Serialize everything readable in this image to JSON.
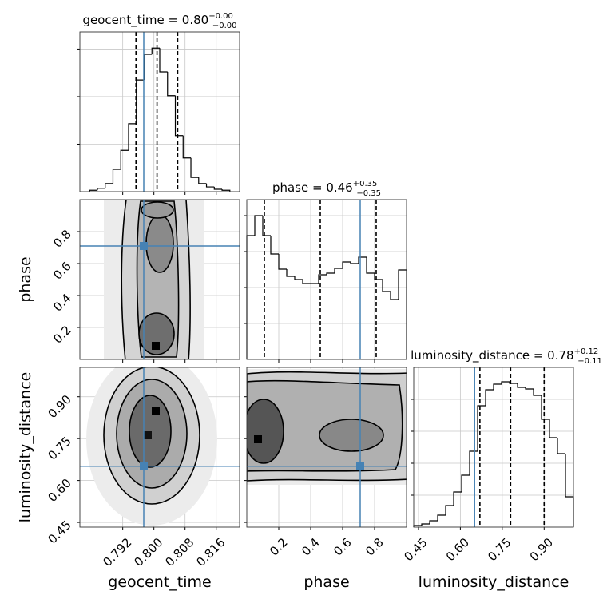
{
  "chart_data": {
    "type": "corner",
    "grid": true,
    "truth_color": "#4682b4",
    "hist_color": "#000000",
    "params": [
      {
        "name": "geocent_time",
        "title": "geocent_time = 0.80",
        "plus": "+0.00",
        "minus": "−0.00",
        "lim": [
          0.781,
          0.822
        ],
        "ticks": [
          0.792,
          {
            "value": 0.8,
            "label": "0.800"
          },
          0.808,
          0.816
        ],
        "truth": 0.7974,
        "quantiles": [
          0.7954,
          0.8008,
          0.8061
        ],
        "hist": {
          "bins": [
            0.7835,
            0.7855,
            0.7875,
            0.7895,
            0.7915,
            0.7935,
            0.7955,
            0.7975,
            0.7995,
            0.8015,
            0.8035,
            0.8055,
            0.8075,
            0.8095,
            0.8115,
            0.8135,
            0.8155,
            0.8175,
            0.8195
          ],
          "counts": [
            3,
            7,
            17,
            47,
            87,
            143,
            235,
            289,
            302,
            252,
            202,
            118,
            71,
            30,
            17,
            10,
            5,
            3
          ],
          "ylim": [
            0,
            336
          ],
          "yticks": [
            100,
            200,
            300
          ]
        }
      },
      {
        "name": "phase",
        "title": "phase = 0.46",
        "plus": "+0.35",
        "minus": "−0.35",
        "lim": [
          0,
          1
        ],
        "ticks": [
          0.2,
          0.4,
          0.6,
          0.8
        ],
        "truth": 0.71,
        "quantiles": [
          0.11,
          0.46,
          0.81
        ],
        "hist": {
          "bins": [
            0,
            0.05,
            0.1,
            0.15,
            0.2,
            0.25,
            0.3,
            0.35,
            0.4,
            0.45,
            0.5,
            0.55,
            0.6,
            0.65,
            0.7,
            0.75,
            0.8,
            0.85,
            0.9,
            0.95,
            1.0
          ],
          "counts": [
            155,
            180,
            155,
            132,
            113,
            104,
            100,
            95,
            95,
            106,
            108,
            114,
            122,
            120,
            128,
            108,
            100,
            85,
            75,
            112
          ],
          "ylim": [
            0,
            200
          ],
          "yticks": [
            45,
            90,
            135,
            180
          ]
        }
      },
      {
        "name": "luminosity_distance",
        "title": "luminosity_distance = 0.78",
        "plus": "+0.12",
        "minus": "−0.11",
        "lim": [
          0.433,
          1.005
        ],
        "ticks": [
          0.45,
          {
            "value": 0.6,
            "label": "0.60"
          },
          0.75,
          {
            "value": 0.9,
            "label": "0.90"
          }
        ],
        "truth": 0.651,
        "quantiles": [
          0.67,
          0.78,
          0.9
        ],
        "hist": {
          "bins": [
            0.433,
            0.4616,
            0.4902,
            0.5188,
            0.5474,
            0.576,
            0.6046,
            0.6332,
            0.6618,
            0.6904,
            0.719,
            0.7476,
            0.7762,
            0.8048,
            0.8334,
            0.862,
            0.8906,
            0.9192,
            0.9478,
            0.9764,
            1.005
          ],
          "counts": [
            2,
            4,
            8,
            15,
            27,
            44,
            65,
            95,
            152,
            172,
            179,
            182,
            180,
            175,
            173,
            165,
            135,
            112,
            92,
            38
          ],
          "ylim": [
            0,
            200
          ],
          "yticks": [
            40,
            80,
            120,
            160
          ]
        }
      }
    ]
  }
}
